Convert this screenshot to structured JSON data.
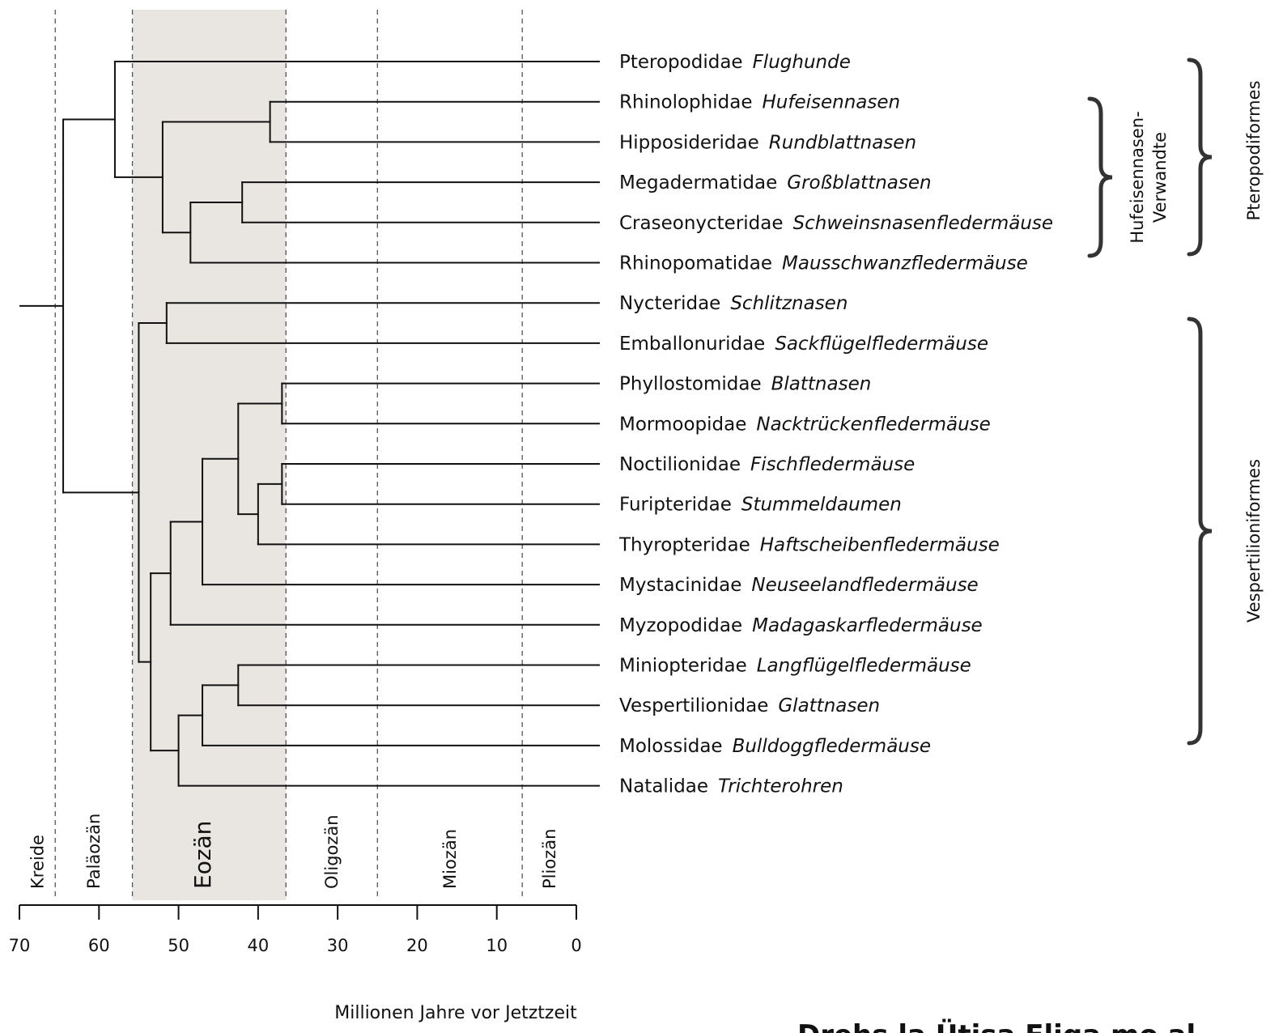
{
  "taxa": [
    {
      "family": "Pteropodidae",
      "common": "Flughunde"
    },
    {
      "family": "Rhinolophidae",
      "common": "Hufeisennasen"
    },
    {
      "family": "Hipposideridae",
      "common": "Rundblattnasen"
    },
    {
      "family": "Megadermatidae",
      "common": "Großblattnasen"
    },
    {
      "family": "Craseonycteridae",
      "common": "Schweinsnasenfledermäuse"
    },
    {
      "family": "Rhinopomatidae",
      "common": "Mausschwanzfledermäuse"
    },
    {
      "family": "Nycteridae",
      "common": "Schlitznasen"
    },
    {
      "family": "Emballonuridae",
      "common": "Sackflügelfledermäuse"
    },
    {
      "family": "Phyllostomidae",
      "common": "Blattnasen"
    },
    {
      "family": "Mormoopidae",
      "common": "Nacktrückenfledermäuse"
    },
    {
      "family": "Noctilionidae",
      "common": "Fischfledermäuse"
    },
    {
      "family": "Furipteridae",
      "common": "Stummeldaumen"
    },
    {
      "family": "Thyropteridae",
      "common": "Haftscheibenfledermäuse"
    },
    {
      "family": "Mystacinidae",
      "common": "Neuseelandfledermäuse"
    },
    {
      "family": "Myzopodidae",
      "common": "Madagaskarfledermäuse"
    },
    {
      "family": "Miniopteridae",
      "common": "Langflügelfledermäuse"
    },
    {
      "family": "Vespertilionidae",
      "common": "Glattnasen"
    },
    {
      "family": "Molossidae",
      "common": "Bulldoggfledermäuse"
    },
    {
      "family": "Natalidae",
      "common": "Trichterohren"
    }
  ],
  "tree": {
    "root_age": 64.5,
    "tip_age": 0,
    "nodes": [
      {
        "id": "root",
        "age": 64.5,
        "children": [
          "n_ptero",
          "n_vesp"
        ]
      },
      {
        "id": "n_ptero",
        "age": 58,
        "children": [
          0,
          "n_rhin_all"
        ]
      },
      {
        "id": "n_rhin_all",
        "age": 52,
        "children": [
          "n_rhinolo",
          "n_mega_rhino"
        ]
      },
      {
        "id": "n_rhinolo",
        "age": 38.5,
        "children": [
          1,
          2
        ]
      },
      {
        "id": "n_mega_rhino",
        "age": 48.5,
        "children": [
          "n_mega",
          5
        ]
      },
      {
        "id": "n_mega",
        "age": 42,
        "children": [
          3,
          4
        ]
      },
      {
        "id": "n_vesp",
        "age": 55,
        "children": [
          "n_emb",
          "n_yang"
        ]
      },
      {
        "id": "n_emb",
        "age": 51.5,
        "children": [
          6,
          7
        ]
      },
      {
        "id": "n_yang",
        "age": 53.5,
        "children": [
          "n_noct_myzo",
          "n_vesp_nat"
        ]
      },
      {
        "id": "n_noct_myzo",
        "age": 51,
        "children": [
          "n_noct_myst",
          14
        ]
      },
      {
        "id": "n_noct_myst",
        "age": 47,
        "children": [
          "n_noct",
          13
        ]
      },
      {
        "id": "n_noct",
        "age": 42.5,
        "children": [
          "n_phyl",
          "n_nf_th"
        ]
      },
      {
        "id": "n_phyl",
        "age": 37,
        "children": [
          8,
          9
        ]
      },
      {
        "id": "n_nf_th",
        "age": 40,
        "children": [
          "n_nf",
          12
        ]
      },
      {
        "id": "n_nf",
        "age": 37,
        "children": [
          10,
          11
        ]
      },
      {
        "id": "n_vesp_nat",
        "age": 50,
        "children": [
          "n_vesp_mol",
          18
        ]
      },
      {
        "id": "n_vesp_mol",
        "age": 47,
        "children": [
          "n_mini",
          17
        ]
      },
      {
        "id": "n_mini",
        "age": 42.5,
        "children": [
          15,
          16
        ]
      }
    ]
  },
  "epochs": [
    {
      "name": "Kreide",
      "start": 70,
      "end": 65.5
    },
    {
      "name": "Paläozän",
      "start": 65.5,
      "end": 55.8
    },
    {
      "name": "Eozän",
      "start": 55.8,
      "end": 36.5,
      "shaded": true
    },
    {
      "name": "Oligozän",
      "start": 36.5,
      "end": 25
    },
    {
      "name": "Miozän",
      "start": 25,
      "end": 6.8
    },
    {
      "name": "Pliozän",
      "start": 6.8,
      "end": 0
    }
  ],
  "axis": {
    "ticks": [
      "70",
      "60",
      "50",
      "40",
      "30",
      "20",
      "10",
      "0"
    ],
    "tick_values": [
      70,
      60,
      50,
      40,
      30,
      20,
      10,
      0
    ],
    "title": "Millionen Jahre vor Jetztzeit"
  },
  "groups": {
    "hufeisen": {
      "line1": "Hufeisennasen-",
      "line2": "Verwandte",
      "from": 1,
      "to": 5
    },
    "pteropodiformes": {
      "label": "Pteropodiformes",
      "from": 0,
      "to": 5
    },
    "vespertilioniformes": {
      "label": "Vespertilioniformes",
      "from": 6,
      "to": 18
    }
  },
  "colors": {
    "line": "#111111",
    "shade": "#e9e6e2",
    "dash": "#555555"
  },
  "footer": {
    "text": "Drehs la Ütisa Fliga mo al"
  }
}
